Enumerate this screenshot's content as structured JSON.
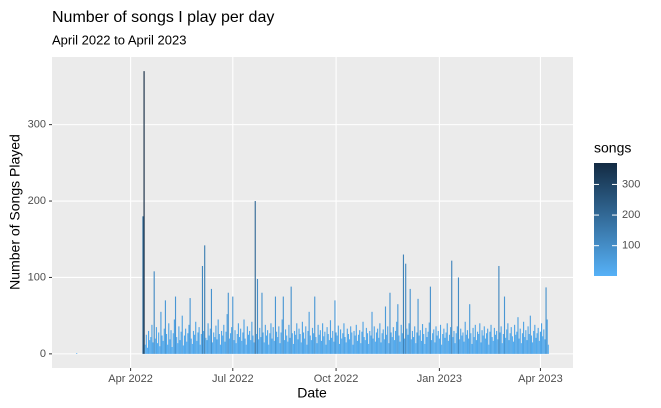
{
  "chart_data": {
    "type": "bar",
    "title": "Number of songs I play per day",
    "subtitle": "April 2022 to April 2023",
    "x_label": "Date",
    "y_label": "Number of Songs Played",
    "legend_title": "songs",
    "fill_low": "#56B1F7",
    "fill_high": "#132B43",
    "legend_ticks": [
      100,
      200,
      300
    ],
    "grid": true,
    "xlim": [
      19013,
      19477
    ],
    "ylim": [
      -18.5,
      388.5
    ],
    "xticks": [
      {
        "value": 19083,
        "label": "Apr 2022"
      },
      {
        "value": 19174,
        "label": "Jul 2022"
      },
      {
        "value": 19266,
        "label": "Oct 2022"
      },
      {
        "value": 19358,
        "label": "Jan 2023"
      },
      {
        "value": 19448,
        "label": "Apr 2023"
      }
    ],
    "yticks": [
      0,
      100,
      200,
      300
    ],
    "x": [
      19035,
      19094,
      19095,
      19096,
      19097,
      19098,
      19099,
      19100,
      19101,
      19102,
      19103,
      19104,
      19105,
      19106,
      19107,
      19108,
      19109,
      19110,
      19111,
      19112,
      19113,
      19114,
      19115,
      19116,
      19117,
      19118,
      19119,
      19120,
      19121,
      19122,
      19123,
      19124,
      19125,
      19126,
      19127,
      19128,
      19129,
      19130,
      19131,
      19132,
      19133,
      19134,
      19135,
      19136,
      19137,
      19138,
      19139,
      19140,
      19141,
      19142,
      19143,
      19144,
      19145,
      19146,
      19147,
      19148,
      19149,
      19150,
      19151,
      19152,
      19153,
      19154,
      19155,
      19156,
      19157,
      19158,
      19159,
      19160,
      19161,
      19162,
      19163,
      19164,
      19165,
      19166,
      19167,
      19168,
      19169,
      19170,
      19171,
      19172,
      19173,
      19174,
      19175,
      19176,
      19177,
      19178,
      19179,
      19180,
      19181,
      19182,
      19183,
      19184,
      19185,
      19186,
      19187,
      19188,
      19189,
      19190,
      19191,
      19192,
      19193,
      19194,
      19195,
      19196,
      19197,
      19198,
      19199,
      19200,
      19201,
      19202,
      19203,
      19204,
      19205,
      19206,
      19207,
      19208,
      19209,
      19210,
      19211,
      19212,
      19213,
      19214,
      19215,
      19216,
      19217,
      19218,
      19219,
      19220,
      19221,
      19222,
      19223,
      19224,
      19225,
      19226,
      19227,
      19228,
      19229,
      19230,
      19231,
      19232,
      19233,
      19234,
      19235,
      19236,
      19237,
      19238,
      19239,
      19240,
      19241,
      19242,
      19243,
      19244,
      19245,
      19246,
      19247,
      19248,
      19249,
      19250,
      19251,
      19252,
      19253,
      19254,
      19255,
      19256,
      19257,
      19258,
      19259,
      19260,
      19261,
      19262,
      19263,
      19264,
      19265,
      19266,
      19267,
      19268,
      19269,
      19270,
      19271,
      19272,
      19273,
      19274,
      19275,
      19276,
      19277,
      19278,
      19279,
      19280,
      19281,
      19282,
      19283,
      19284,
      19285,
      19286,
      19287,
      19288,
      19289,
      19290,
      19291,
      19292,
      19293,
      19294,
      19295,
      19296,
      19297,
      19298,
      19299,
      19300,
      19301,
      19302,
      19303,
      19304,
      19305,
      19306,
      19307,
      19308,
      19309,
      19310,
      19311,
      19312,
      19313,
      19314,
      19315,
      19316,
      19317,
      19318,
      19319,
      19320,
      19321,
      19322,
      19323,
      19324,
      19325,
      19326,
      19327,
      19328,
      19329,
      19330,
      19331,
      19332,
      19333,
      19334,
      19335,
      19336,
      19337,
      19338,
      19339,
      19340,
      19341,
      19342,
      19343,
      19344,
      19345,
      19346,
      19347,
      19348,
      19349,
      19350,
      19351,
      19352,
      19353,
      19354,
      19355,
      19356,
      19357,
      19358,
      19359,
      19360,
      19361,
      19362,
      19363,
      19364,
      19365,
      19366,
      19367,
      19368,
      19369,
      19370,
      19371,
      19372,
      19373,
      19374,
      19375,
      19376,
      19377,
      19378,
      19379,
      19380,
      19381,
      19382,
      19383,
      19384,
      19385,
      19386,
      19387,
      19388,
      19389,
      19390,
      19391,
      19392,
      19393,
      19394,
      19395,
      19396,
      19397,
      19398,
      19399,
      19400,
      19401,
      19402,
      19403,
      19404,
      19405,
      19406,
      19407,
      19408,
      19409,
      19410,
      19411,
      19412,
      19413,
      19414,
      19415,
      19416,
      19417,
      19418,
      19419,
      19420,
      19421,
      19422,
      19423,
      19424,
      19425,
      19426,
      19427,
      19428,
      19429,
      19430,
      19431,
      19432,
      19433,
      19434,
      19435,
      19436,
      19437,
      19438,
      19439,
      19440,
      19441,
      19442,
      19443,
      19444,
      19445,
      19446,
      19447,
      19448,
      19449,
      19450,
      19451,
      19452,
      19453,
      19454,
      19455
    ],
    "values": [
      1,
      180,
      370,
      12,
      25,
      8,
      30,
      18,
      22,
      38,
      15,
      108,
      20,
      35,
      14,
      28,
      10,
      55,
      24,
      17,
      33,
      70,
      26,
      12,
      40,
      19,
      31,
      9,
      27,
      45,
      75,
      22,
      14,
      36,
      18,
      29,
      50,
      11,
      24,
      33,
      16,
      27,
      38,
      73,
      20,
      13,
      30,
      25,
      42,
      17,
      28,
      35,
      12,
      26,
      115,
      30,
      142,
      21,
      18,
      40,
      24,
      33,
      85,
      15,
      28,
      22,
      37,
      19,
      45,
      26,
      12,
      30,
      24,
      38,
      16,
      29,
      52,
      80,
      20,
      27,
      35,
      75,
      18,
      31,
      14,
      26,
      40,
      22,
      33,
      17,
      28,
      45,
      20,
      12,
      36,
      25,
      30,
      18,
      42,
      24,
      15,
      200,
      26,
      98,
      19,
      34,
      22,
      80,
      28,
      15,
      38,
      24,
      31,
      12,
      27,
      40,
      20,
      35,
      17,
      75,
      29,
      22,
      36,
      14,
      28,
      45,
      75,
      18,
      32,
      24,
      16,
      38,
      21,
      88,
      27,
      13,
      30,
      25,
      40,
      19,
      33,
      26,
      15,
      42,
      28,
      20,
      36,
      12,
      30,
      55,
      24,
      18,
      34,
      27,
      75,
      22,
      14,
      38,
      25,
      31,
      17,
      40,
      23,
      29,
      12,
      35,
      26,
      18,
      44,
      21,
      30,
      16,
      70,
      28,
      24,
      37,
      13,
      32,
      20,
      27,
      40,
      22,
      15,
      33,
      26,
      19,
      36,
      28,
      12,
      30,
      24,
      38,
      17,
      25,
      31,
      14,
      29,
      42,
      22,
      18,
      34,
      27,
      13,
      30,
      24,
      55,
      20,
      36,
      16,
      28,
      33,
      21,
      40,
      15,
      27,
      32,
      19,
      62,
      25,
      36,
      14,
      80,
      28,
      22,
      35,
      18,
      30,
      42,
      65,
      24,
      16,
      38,
      27,
      130,
      20,
      118,
      33,
      25,
      40,
      85,
      19,
      30,
      22,
      36,
      14,
      28,
      72,
      24,
      31,
      17,
      39,
      26,
      13,
      34,
      22,
      29,
      41,
      88,
      18,
      27,
      32,
      15,
      36,
      24,
      30,
      20,
      38,
      12,
      26,
      33,
      21,
      28,
      40,
      17,
      25,
      35,
      122,
      22,
      30,
      14,
      27,
      36,
      100,
      19,
      33,
      24,
      28,
      16,
      42,
      25,
      31,
      20,
      65,
      27,
      13,
      34,
      22,
      38,
      18,
      29,
      26,
      40,
      15,
      31,
      24,
      36,
      20,
      27,
      33,
      12,
      29,
      38,
      22,
      17,
      34,
      25,
      30,
      19,
      115,
      28,
      36,
      14,
      26,
      75,
      21,
      32,
      40,
      18,
      27,
      35,
      23,
      16,
      38,
      25,
      29,
      48,
      20,
      33,
      14,
      27,
      42,
      22,
      31,
      18,
      36,
      26,
      50,
      24,
      15,
      30,
      38,
      21,
      27,
      34,
      17,
      29,
      40,
      23,
      32,
      19,
      87,
      45,
      12
    ]
  }
}
